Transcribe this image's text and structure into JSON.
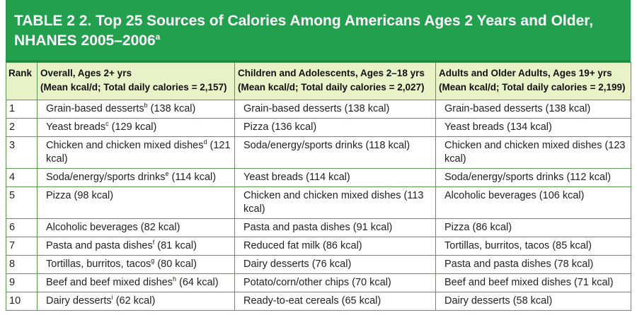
{
  "table": {
    "title": "TABLE 2 2. Top 25 Sources of Calories Among Americans Ages 2 Years and Older,",
    "title_line2": "NHANES 2005–2006",
    "title_sup": "a",
    "header": {
      "rank": "Rank",
      "col1_line1": "Overall, Ages 2+ yrs",
      "col1_line2": "(Mean kcal/d; Total daily calories = 2,157)",
      "col2_line1": "Children and Adolescents, Ages 2–18 yrs",
      "col2_line2": "(Mean kcal/d; Total daily calories = 2,027)",
      "col3_line1": "Adults and Older Adults, Ages 19+ yrs",
      "col3_line2": "(Mean kcal/d; Total daily calories = 2,199)"
    },
    "rows": [
      {
        "rank": "1",
        "overall": "Grain-based desserts",
        "overall_sup": "b",
        "overall_kcal": " (138 kcal)",
        "children": "Grain-based desserts (138 kcal)",
        "adults": "Grain-based desserts (138 kcal)"
      },
      {
        "rank": "2",
        "overall": "Yeast breads",
        "overall_sup": "c",
        "overall_kcal": " (129 kcal)",
        "children": "Pizza (136 kcal)",
        "adults": "Yeast breads (134 kcal)"
      },
      {
        "rank": "3",
        "overall": "Chicken and chicken mixed dishes",
        "overall_sup": "d",
        "overall_kcal": " (121 kcal)",
        "children": "Soda/energy/sports drinks (118 kcal)",
        "adults": "Chicken and chicken mixed dishes (123 kcal)"
      },
      {
        "rank": "4",
        "overall": "Soda/energy/sports drinks",
        "overall_sup": "e",
        "overall_kcal": " (114 kcal)",
        "children": "Yeast breads (114 kcal)",
        "adults": "Soda/energy/sports drinks (112 kcal)"
      },
      {
        "rank": "5",
        "overall": "Pizza (98 kcal)",
        "overall_sup": "",
        "overall_kcal": "",
        "children": "Chicken and chicken mixed dishes (113 kcal)",
        "adults": "Alcoholic beverages (106 kcal)"
      },
      {
        "rank": "6",
        "overall": "Alcoholic beverages (82 kcal)",
        "overall_sup": "",
        "overall_kcal": "",
        "children": "Pasta and pasta dishes (91 kcal)",
        "adults": "Pizza (86 kcal)"
      },
      {
        "rank": "7",
        "overall": "Pasta and pasta dishes",
        "overall_sup": "f",
        "overall_kcal": " (81 kcal)",
        "children": "Reduced fat milk (86 kcal)",
        "adults": "Tortillas, burritos, tacos (85 kcal)"
      },
      {
        "rank": "8",
        "overall": "Tortillas, burritos, tacos",
        "overall_sup": "g",
        "overall_kcal": " (80 kcal)",
        "children": "Dairy desserts (76 kcal)",
        "adults": "Pasta and pasta dishes (78 kcal)"
      },
      {
        "rank": "9",
        "overall": "Beef and beef mixed dishes",
        "overall_sup": "h",
        "overall_kcal": " (64 kcal)",
        "children": "Potato/corn/other chips (70 kcal)",
        "adults": "Beef and beef mixed dishes (71 kcal)"
      },
      {
        "rank": "10",
        "overall": "Dairy desserts",
        "overall_sup": "i",
        "overall_kcal": " (62 kcal)",
        "children": "Ready-to-eat cereals (65 kcal)",
        "adults": "Dairy desserts (58 kcal)"
      }
    ]
  }
}
